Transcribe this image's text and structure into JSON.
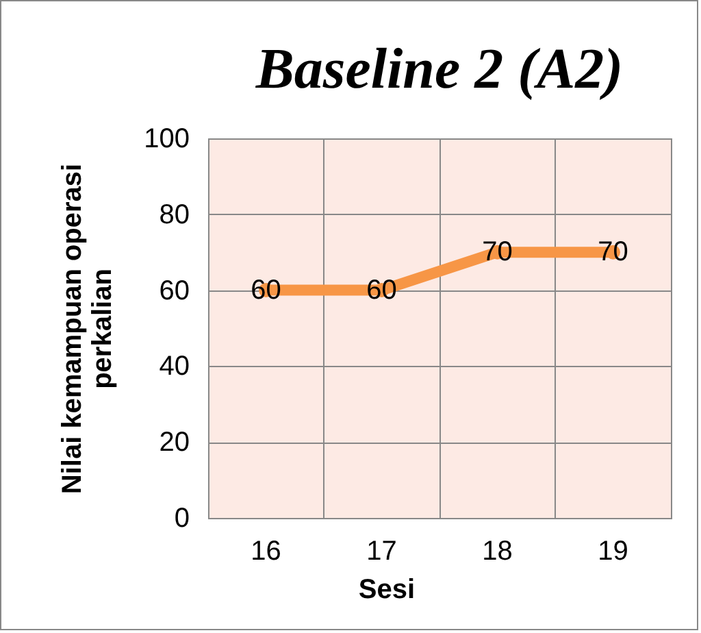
{
  "chart_data": {
    "type": "line",
    "title": "Baseline 2 (A2)",
    "xlabel": "Sesi",
    "ylabel": "Nilai kemampuan operasi perkalian",
    "categories": [
      "16",
      "17",
      "18",
      "19"
    ],
    "series": [
      {
        "color": "#f79646",
        "values": [
          60,
          60,
          70,
          70
        ]
      }
    ],
    "ylim": [
      0,
      100
    ],
    "yticks": [
      0,
      20,
      40,
      60,
      80,
      100
    ],
    "grid": true,
    "marker": "circle",
    "data_labels": true,
    "legend": false
  }
}
